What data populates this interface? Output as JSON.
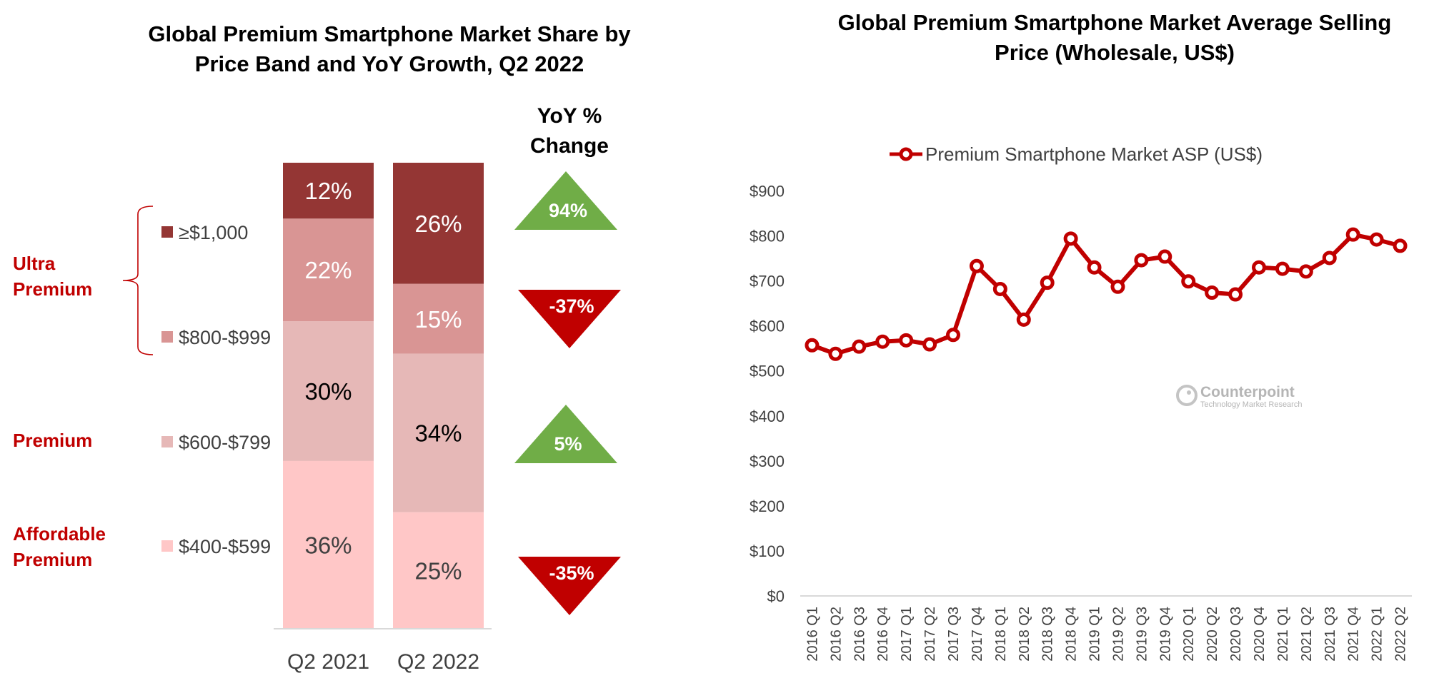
{
  "chart_data": [
    {
      "type": "bar",
      "stacked": true,
      "title": "Global Premium Smartphone Market Share by Price Band and YoY Growth, Q2 2022",
      "title_lines": [
        "Global Premium Smartphone Market Share by",
        "Price Band and YoY Growth, Q2 2022"
      ],
      "categories": [
        "Q2 2021",
        "Q2 2022"
      ],
      "series": [
        {
          "name": "≥$1,000",
          "color": "#943634",
          "label_color": "#ffffff",
          "values": [
            12,
            26
          ],
          "labels": [
            "12%",
            "26%"
          ]
        },
        {
          "name": "$800-$999",
          "color": "#D99594",
          "label_color": "#ffffff",
          "values": [
            22,
            15
          ],
          "labels": [
            "22%",
            "15%"
          ]
        },
        {
          "name": "$600-$799",
          "color": "#E6B8B7",
          "label_color": "#000000",
          "values": [
            30,
            34
          ],
          "labels": [
            "30%",
            "34%"
          ]
        },
        {
          "name": "$400-$599",
          "color": "#FFC7C7",
          "label_color": "#404040",
          "values": [
            36,
            25
          ],
          "labels": [
            "36%",
            "25%"
          ]
        }
      ],
      "ylim": [
        0,
        100
      ],
      "unit": "%",
      "groups": [
        {
          "label_lines": [
            "Ultra",
            "Premium"
          ],
          "bands": [
            "≥$1,000",
            "$800-$999"
          ]
        },
        {
          "label_lines": [
            "Premium"
          ],
          "bands": [
            "$600-$799"
          ]
        },
        {
          "label_lines": [
            "Affordable",
            "Premium"
          ],
          "bands": [
            "$400-$599"
          ]
        }
      ],
      "yoy_header_lines": [
        "YoY %",
        "Change"
      ],
      "yoy_change": [
        {
          "band": "≥$1,000",
          "value": 94,
          "label": "94%",
          "direction": "up",
          "color": "#70AD47"
        },
        {
          "band": "$800-$999",
          "value": -37,
          "label": "-37%",
          "direction": "down",
          "color": "#C00000"
        },
        {
          "band": "$600-$799",
          "value": 5,
          "label": "5%",
          "direction": "up",
          "color": "#70AD47"
        },
        {
          "band": "$400-$599",
          "value": -35,
          "label": "-35%",
          "direction": "down",
          "color": "#C00000"
        }
      ]
    },
    {
      "type": "line",
      "title": "Global Premium Smartphone Market Average Selling Price (Wholesale, US$)",
      "title_lines": [
        "Global Premium Smartphone Market Average Selling",
        "Price (Wholesale, US$)"
      ],
      "legend": {
        "label": "Premium Smartphone Market ASP (US$)",
        "position": "top"
      },
      "x": [
        "2016 Q1",
        "2016 Q2",
        "2016 Q3",
        "2016 Q4",
        "2017 Q1",
        "2017 Q2",
        "2017 Q3",
        "2017 Q4",
        "2018 Q1",
        "2018 Q2",
        "2018 Q3",
        "2018 Q4",
        "2019 Q1",
        "2019 Q2",
        "2019 Q3",
        "2019 Q4",
        "2020 Q1",
        "2020 Q2",
        "2020 Q3",
        "2020 Q4",
        "2021 Q1",
        "2021 Q2",
        "2021 Q3",
        "2021 Q4",
        "2022 Q1",
        "2022 Q2"
      ],
      "series": [
        {
          "name": "Premium Smartphone Market ASP (US$)",
          "color": "#C00000",
          "values": [
            557,
            538,
            554,
            565,
            568,
            559,
            580,
            733,
            682,
            614,
            696,
            794,
            730,
            687,
            746,
            754,
            699,
            674,
            670,
            730,
            727,
            721,
            751,
            803,
            792,
            778
          ]
        }
      ],
      "ylim": [
        0,
        900
      ],
      "yticks": [
        0,
        100,
        200,
        300,
        400,
        500,
        600,
        700,
        800,
        900
      ],
      "ytick_labels": [
        "$0",
        "$100",
        "$200",
        "$300",
        "$400",
        "$500",
        "$600",
        "$700",
        "$800",
        "$900"
      ],
      "grid": false,
      "xlabel": "",
      "ylabel": ""
    }
  ],
  "watermark": {
    "brand": "Counterpoint",
    "tagline": "Technology Market Research"
  }
}
